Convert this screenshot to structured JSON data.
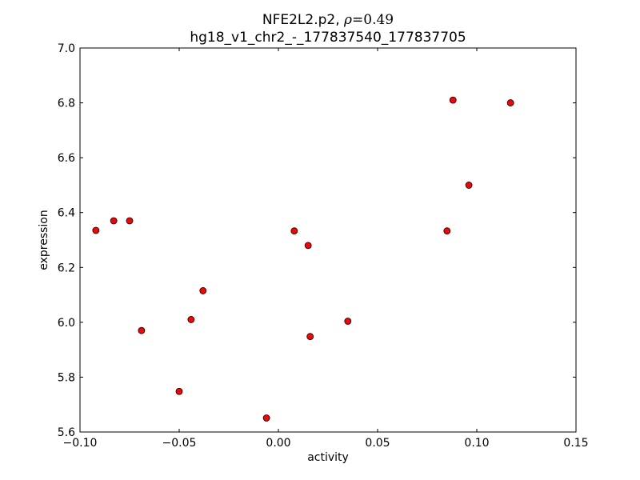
{
  "chart_data": {
    "type": "scatter",
    "title_line1_name": "NFE2L2.p2, ",
    "title_line1_rho_symbol": "ρ",
    "title_line1_rho_value": "=0.49",
    "title_line2": "hg18_v1_chr2_-_177837540_177837705",
    "xlabel": "activity",
    "ylabel": "expression",
    "xlim": [
      -0.1,
      0.15
    ],
    "ylim": [
      5.6,
      7.0
    ],
    "xticks": [
      -0.1,
      -0.05,
      0.0,
      0.05,
      0.1,
      0.15
    ],
    "xtick_labels": [
      "−0.10",
      "−0.05",
      "0.00",
      "0.05",
      "0.10",
      "0.15"
    ],
    "yticks": [
      5.6,
      5.8,
      6.0,
      6.2,
      6.4,
      6.6,
      6.8,
      7.0
    ],
    "ytick_labels": [
      "5.6",
      "5.8",
      "6.0",
      "6.2",
      "6.4",
      "6.6",
      "6.8",
      "7.0"
    ],
    "grid": false,
    "marker_color": "#ff0000",
    "marker_edge_color": "#000000",
    "points": [
      {
        "x": -0.092,
        "y": 6.335
      },
      {
        "x": -0.083,
        "y": 6.37
      },
      {
        "x": -0.075,
        "y": 6.37
      },
      {
        "x": -0.069,
        "y": 5.97
      },
      {
        "x": -0.05,
        "y": 5.748
      },
      {
        "x": -0.044,
        "y": 6.01
      },
      {
        "x": -0.038,
        "y": 6.115
      },
      {
        "x": -0.006,
        "y": 5.651
      },
      {
        "x": 0.008,
        "y": 6.333
      },
      {
        "x": 0.015,
        "y": 6.28
      },
      {
        "x": 0.016,
        "y": 5.948
      },
      {
        "x": 0.035,
        "y": 6.004
      },
      {
        "x": 0.085,
        "y": 6.333
      },
      {
        "x": 0.088,
        "y": 6.81
      },
      {
        "x": 0.096,
        "y": 6.5
      },
      {
        "x": 0.117,
        "y": 6.8
      }
    ]
  }
}
